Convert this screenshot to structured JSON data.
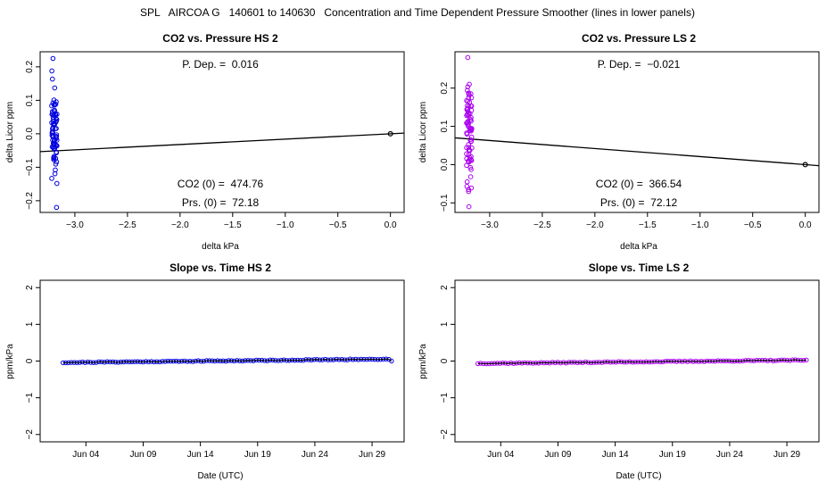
{
  "figure_title": "SPL   AIRCOA G   140601 to 140630   Concentration and Time Dependent Pressure Smoother (lines in lower panels)",
  "colors": {
    "hs": "#0000dd",
    "ls": "#aa00ee",
    "line": "#000000",
    "ref_point": "#000000"
  },
  "chart_data": [
    {
      "id": "co2-vs-pressure-hs",
      "type": "scatter",
      "title": "CO2 vs. Pressure HS 2",
      "xlabel": "delta kPa",
      "ylabel": "delta Licor ppm",
      "xlim": [
        -3.33,
        0.13
      ],
      "ylim": [
        -0.235,
        0.245
      ],
      "xticks": [
        -3.0,
        -2.5,
        -2.0,
        -1.5,
        -1.0,
        -0.5,
        0.0
      ],
      "xtick_labels": [
        "−3.0",
        "−2.5",
        "−2.0",
        "−1.5",
        "−1.0",
        "−0.5",
        "0.0"
      ],
      "yticks": [
        -0.2,
        -0.1,
        0.0,
        0.1,
        0.2
      ],
      "ytick_labels": [
        "−0.2",
        "−0.1",
        "0.0",
        "0.1",
        "0.2"
      ],
      "cluster": {
        "x_min": -3.22,
        "x_max": -3.17,
        "y_min": -0.22,
        "y_max": 0.225,
        "n": 80,
        "seed": 7
      },
      "fit_line": {
        "slope": 0.016,
        "intercept": 0.0
      },
      "reference_point": {
        "x": 0.0,
        "y": 0.0
      },
      "annotations": {
        "p_dep": "P. Dep. =  0.016",
        "co2_0": "CO2 (0) =  474.76",
        "prs_0": "Prs. (0) =  72.18"
      }
    },
    {
      "id": "co2-vs-pressure-ls",
      "type": "scatter",
      "title": "CO2 vs. Pressure LS 2",
      "xlabel": "delta kPa",
      "ylabel": "delta Licor ppm",
      "xlim": [
        -3.33,
        0.13
      ],
      "ylim": [
        -0.125,
        0.295
      ],
      "xticks": [
        -3.0,
        -2.5,
        -2.0,
        -1.5,
        -1.0,
        -0.5,
        0.0
      ],
      "xtick_labels": [
        "−3.0",
        "−2.5",
        "−2.0",
        "−1.5",
        "−1.0",
        "−0.5",
        "0.0"
      ],
      "yticks": [
        -0.1,
        0.0,
        0.1,
        0.2
      ],
      "ytick_labels": [
        "−0.1",
        "0.0",
        "0.1",
        "0.2"
      ],
      "cluster": {
        "x_min": -3.22,
        "x_max": -3.17,
        "y_min": -0.11,
        "y_max": 0.28,
        "n": 80,
        "seed": 13
      },
      "fit_line": {
        "slope": -0.021,
        "intercept": 0.0
      },
      "reference_point": {
        "x": 0.0,
        "y": 0.0
      },
      "annotations": {
        "p_dep": "P. Dep. =  −0.021",
        "co2_0": "CO2 (0) =  366.54",
        "prs_0": "Prs. (0) =  72.12"
      }
    },
    {
      "id": "slope-vs-time-hs",
      "type": "line",
      "title": "Slope vs. Time HS 2",
      "xlabel": "Date (UTC)",
      "ylabel": "ppm/kPa",
      "xlim": [
        -1.0,
        30.8
      ],
      "ylim": [
        -2.2,
        2.2
      ],
      "xticks": [
        3,
        8,
        13,
        18,
        23,
        28
      ],
      "xtick_labels": [
        "Jun 04",
        "Jun 09",
        "Jun 14",
        "Jun 19",
        "Jun 24",
        "Jun 29"
      ],
      "yticks": [
        -2,
        -1,
        0,
        1,
        2
      ],
      "ytick_labels": [
        "−2",
        "−1",
        "0",
        "1",
        "2"
      ],
      "series": {
        "name": "slope",
        "day_start": 1.0,
        "day_end": 29.7,
        "n": 120,
        "y_start": -0.04,
        "y_end": 0.055,
        "y_final": 0.0,
        "noise": 0.012,
        "seed": 21
      }
    },
    {
      "id": "slope-vs-time-ls",
      "type": "line",
      "title": "Slope vs. Time LS 2",
      "xlabel": "Date (UTC)",
      "ylabel": "ppm/kPa",
      "xlim": [
        -1.0,
        30.8
      ],
      "ylim": [
        -2.2,
        2.2
      ],
      "xticks": [
        3,
        8,
        13,
        18,
        23,
        28
      ],
      "xtick_labels": [
        "Jun 04",
        "Jun 09",
        "Jun 14",
        "Jun 19",
        "Jun 24",
        "Jun 29"
      ],
      "yticks": [
        -2,
        -1,
        0,
        1,
        2
      ],
      "ytick_labels": [
        "−2",
        "−1",
        "0",
        "1",
        "2"
      ],
      "series": {
        "name": "slope",
        "day_start": 1.0,
        "day_end": 29.7,
        "n": 120,
        "y_start": -0.065,
        "y_end": 0.025,
        "y_final": 0.03,
        "noise": 0.012,
        "seed": 37
      }
    }
  ]
}
